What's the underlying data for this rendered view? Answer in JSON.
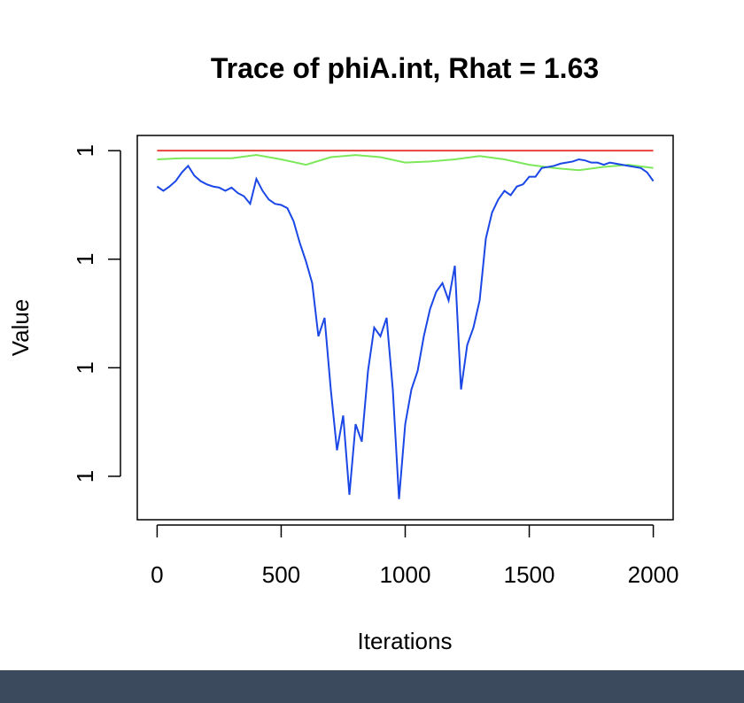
{
  "chart_data": {
    "type": "line",
    "title": "Trace of phiA.int, Rhat = 1.63",
    "x_label": "Iterations",
    "y_label": "Value",
    "xlim": [
      -80,
      2080
    ],
    "ylim": [
      0.99966,
      1.000014
    ],
    "xticks": [
      0,
      500,
      1000,
      1500,
      2000
    ],
    "yticks": [
      {
        "value": 1.0,
        "label": "1"
      },
      {
        "value": 0.9999,
        "label": "1"
      },
      {
        "value": 0.9998,
        "label": "1"
      },
      {
        "value": 0.9997,
        "label": "1"
      }
    ],
    "series": [
      {
        "color": "#e8433a",
        "x": [
          0,
          2000
        ],
        "values": [
          1.0,
          1.0
        ]
      },
      {
        "color": "#7ce85a",
        "x": [
          0,
          100,
          200,
          300,
          400,
          500,
          600,
          700,
          800,
          900,
          1000,
          1100,
          1200,
          1300,
          1400,
          1500,
          1600,
          1700,
          1800,
          1900,
          2000
        ],
        "values": [
          0.999992,
          0.999993,
          0.999993,
          0.999993,
          0.999996,
          0.999992,
          0.999987,
          0.999994,
          0.999996,
          0.999994,
          0.999989,
          0.99999,
          0.999992,
          0.999995,
          0.999992,
          0.999987,
          0.999984,
          0.999982,
          0.999985,
          0.999987,
          0.999984
        ]
      },
      {
        "color": "#1a47e6",
        "x": [
          0,
          25,
          50,
          75,
          100,
          125,
          150,
          175,
          200,
          225,
          250,
          275,
          300,
          325,
          350,
          375,
          400,
          425,
          450,
          475,
          500,
          525,
          550,
          575,
          600,
          625,
          650,
          675,
          700,
          725,
          750,
          775,
          800,
          825,
          850,
          875,
          900,
          925,
          950,
          975,
          1000,
          1025,
          1050,
          1075,
          1100,
          1125,
          1150,
          1175,
          1200,
          1225,
          1250,
          1275,
          1300,
          1325,
          1350,
          1375,
          1400,
          1425,
          1450,
          1475,
          1500,
          1525,
          1550,
          1575,
          1600,
          1625,
          1650,
          1675,
          1700,
          1725,
          1750,
          1775,
          1800,
          1825,
          1850,
          1875,
          1900,
          1925,
          1950,
          1975,
          2000
        ],
        "values": [
          0.999967,
          0.999963,
          0.999967,
          0.999972,
          0.99998,
          0.999986,
          0.999977,
          0.999972,
          0.999969,
          0.999967,
          0.999966,
          0.999963,
          0.999966,
          0.999961,
          0.999958,
          0.999951,
          0.999974,
          0.999963,
          0.999955,
          0.999951,
          0.99995,
          0.999947,
          0.999935,
          0.999915,
          0.999898,
          0.999878,
          0.999829,
          0.999846,
          0.99978,
          0.999724,
          0.999756,
          0.999683,
          0.999748,
          0.999732,
          0.999797,
          0.999837,
          0.999829,
          0.999846,
          0.99978,
          0.999679,
          0.999748,
          0.99978,
          0.999797,
          0.999829,
          0.999854,
          0.99987,
          0.999878,
          0.999862,
          0.999894,
          0.99978,
          0.999821,
          0.999837,
          0.999862,
          0.999919,
          0.999943,
          0.999955,
          0.999963,
          0.999959,
          0.999967,
          0.999969,
          0.999976,
          0.999976,
          0.999984,
          0.999985,
          0.999986,
          0.999988,
          0.999989,
          0.99999,
          0.999992,
          0.999991,
          0.999989,
          0.999989,
          0.999987,
          0.999989,
          0.999988,
          0.999987,
          0.999986,
          0.999985,
          0.999984,
          0.99998,
          0.999972
        ]
      }
    ]
  }
}
